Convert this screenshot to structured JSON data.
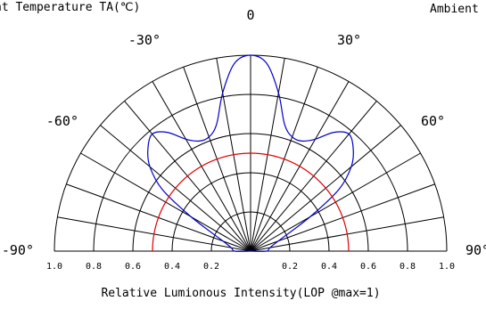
{
  "chart_data": {
    "type": "polar",
    "header_left": "nt Temperature TA(℃)",
    "header_right": "Ambient",
    "xlabel": "Relative Lumionous Intensity(LOP @max=1)",
    "angle_labels": [
      {
        "deg": 0,
        "text": "0"
      },
      {
        "deg": -30,
        "text": "-30°"
      },
      {
        "deg": 30,
        "text": "30°"
      },
      {
        "deg": -60,
        "text": "-60°"
      },
      {
        "deg": 60,
        "text": "60°"
      },
      {
        "deg": -90,
        "text": "-90°"
      },
      {
        "deg": 90,
        "text": "90°"
      }
    ],
    "radial_ticks_left": [
      "1.0",
      "0.8",
      "0.6",
      "0.4",
      "0.2"
    ],
    "radial_ticks_right": [
      "0.2",
      "0.4",
      "0.6",
      "0.8",
      "1.0"
    ],
    "radial_values": [
      1.0,
      0.8,
      0.6,
      0.4,
      0.2
    ],
    "rlim": [
      0,
      1
    ],
    "angle_range": [
      -90,
      90
    ],
    "series": [
      {
        "color": "#0000cc",
        "points": [
          {
            "deg": -90,
            "r": 0.08
          },
          {
            "deg": -80,
            "r": 0.1
          },
          {
            "deg": -70,
            "r": 0.15
          },
          {
            "deg": -60,
            "r": 0.35
          },
          {
            "deg": -55,
            "r": 0.55
          },
          {
            "deg": -50,
            "r": 0.67
          },
          {
            "deg": -45,
            "r": 0.74
          },
          {
            "deg": -40,
            "r": 0.78
          },
          {
            "deg": -35,
            "r": 0.74
          },
          {
            "deg": -30,
            "r": 0.66
          },
          {
            "deg": -25,
            "r": 0.62
          },
          {
            "deg": -20,
            "r": 0.62
          },
          {
            "deg": -15,
            "r": 0.67
          },
          {
            "deg": -10,
            "r": 0.82
          },
          {
            "deg": -5,
            "r": 0.96
          },
          {
            "deg": 0,
            "r": 1.0
          },
          {
            "deg": 5,
            "r": 0.96
          },
          {
            "deg": 10,
            "r": 0.82
          },
          {
            "deg": 15,
            "r": 0.67
          },
          {
            "deg": 20,
            "r": 0.62
          },
          {
            "deg": 25,
            "r": 0.62
          },
          {
            "deg": 30,
            "r": 0.66
          },
          {
            "deg": 35,
            "r": 0.74
          },
          {
            "deg": 40,
            "r": 0.78
          },
          {
            "deg": 45,
            "r": 0.74
          },
          {
            "deg": 50,
            "r": 0.67
          },
          {
            "deg": 55,
            "r": 0.55
          },
          {
            "deg": 60,
            "r": 0.35
          },
          {
            "deg": 70,
            "r": 0.15
          },
          {
            "deg": 80,
            "r": 0.1
          },
          {
            "deg": 90,
            "r": 0.08
          }
        ]
      },
      {
        "color": "#e00000",
        "points": [
          {
            "deg": -90,
            "r": 0.5
          },
          {
            "deg": -60,
            "r": 0.5
          },
          {
            "deg": -30,
            "r": 0.5
          },
          {
            "deg": 0,
            "r": 0.5
          },
          {
            "deg": 30,
            "r": 0.5
          },
          {
            "deg": 60,
            "r": 0.5
          },
          {
            "deg": 90,
            "r": 0.5
          }
        ]
      }
    ],
    "grid": true
  }
}
